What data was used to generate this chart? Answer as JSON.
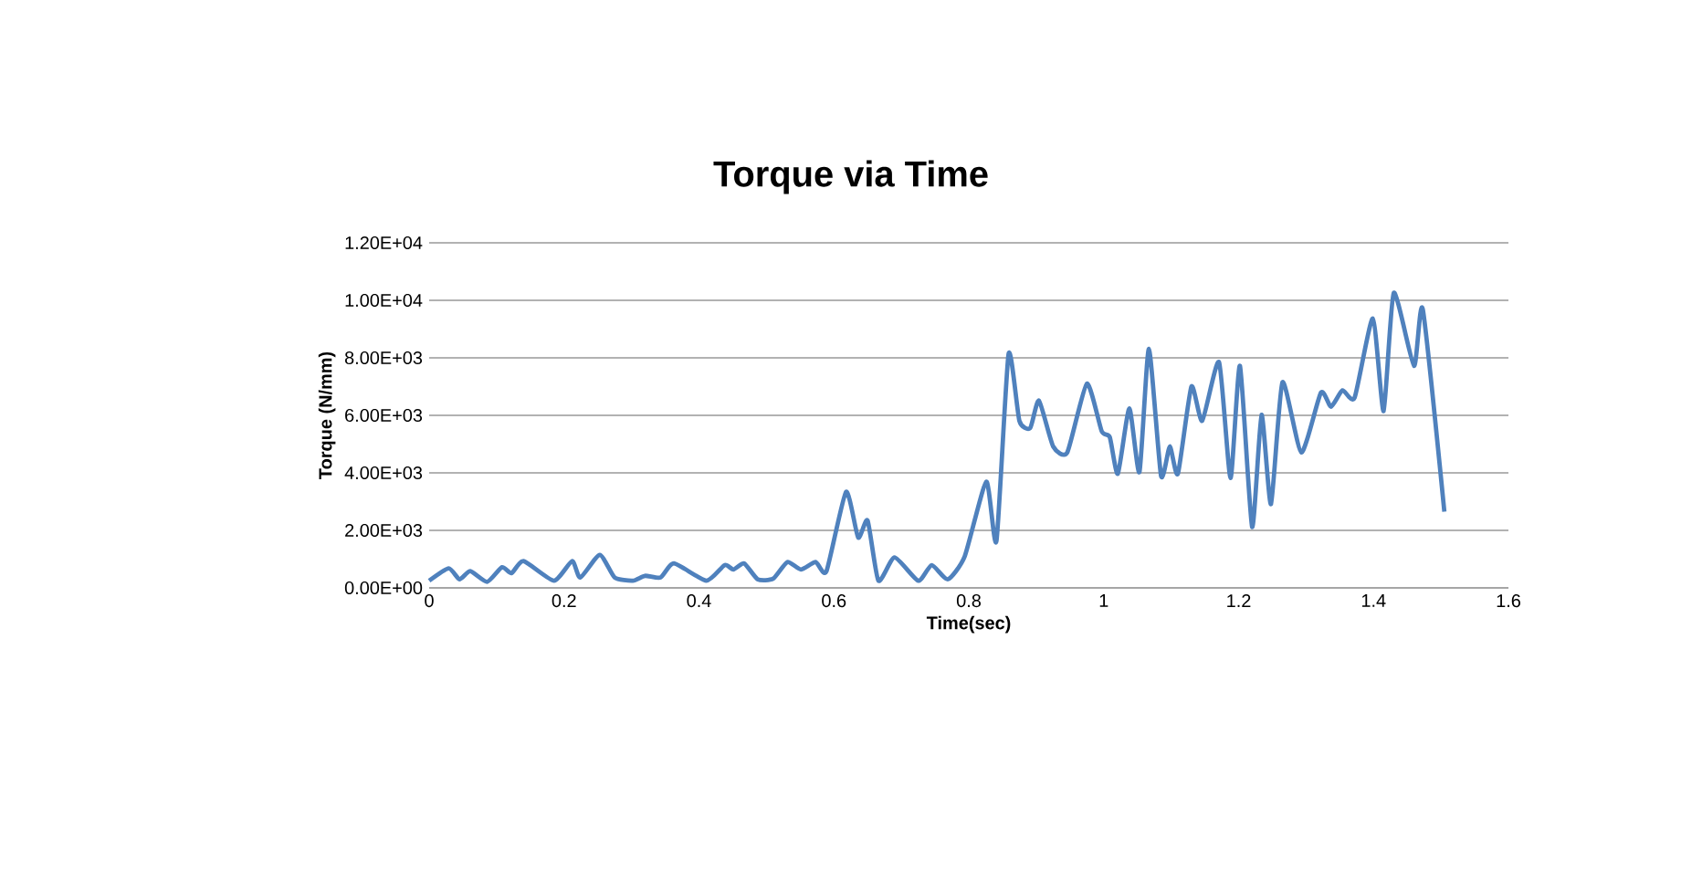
{
  "chart_data": {
    "type": "line",
    "title": "Torque via Time",
    "xlabel": "Time(sec)",
    "ylabel": "Torque (N/mm)",
    "xlim": [
      0,
      1.6
    ],
    "xticks": [
      0,
      0.2,
      0.4,
      0.6,
      0.8,
      1,
      1.2,
      1.4,
      1.6
    ],
    "ylim": [
      0,
      12000
    ],
    "yticks": [
      {
        "value": 0,
        "label": "0.00E+00"
      },
      {
        "value": 2000,
        "label": "2.00E+03"
      },
      {
        "value": 4000,
        "label": "4.00E+03"
      },
      {
        "value": 6000,
        "label": "6.00E+03"
      },
      {
        "value": 8000,
        "label": "8.00E+03"
      },
      {
        "value": 10000,
        "label": "1.00E+04"
      },
      {
        "value": 12000,
        "label": "1.20E+04"
      }
    ],
    "grid": "y",
    "legend": false,
    "marker": "none",
    "line_style": "solid",
    "series": [
      {
        "color": "#4f81bd",
        "x": [
          0,
          0.029,
          0.045,
          0.061,
          0.086,
          0.108,
          0.122,
          0.14,
          0.185,
          0.212,
          0.224,
          0.253,
          0.275,
          0.302,
          0.32,
          0.343,
          0.363,
          0.411,
          0.438,
          0.451,
          0.467,
          0.487,
          0.51,
          0.531,
          0.551,
          0.573,
          0.589,
          0.618,
          0.636,
          0.65,
          0.666,
          0.69,
          0.725,
          0.745,
          0.769,
          0.794,
          0.826,
          0.841,
          0.859,
          0.875,
          0.891,
          0.904,
          0.925,
          0.946,
          0.975,
          0.997,
          1.009,
          1.021,
          1.038,
          1.053,
          1.067,
          1.085,
          1.098,
          1.11,
          1.13,
          1.146,
          1.171,
          1.188,
          1.202,
          1.22,
          1.234,
          1.248,
          1.265,
          1.293,
          1.322,
          1.337,
          1.354,
          1.372,
          1.399,
          1.415,
          1.43,
          1.46,
          1.473,
          1.505
        ],
        "values": [
          250,
          680,
          300,
          580,
          210,
          720,
          510,
          930,
          250,
          930,
          360,
          1150,
          360,
          250,
          420,
          360,
          850,
          250,
          790,
          640,
          850,
          300,
          320,
          900,
          640,
          900,
          580,
          3340,
          1750,
          2340,
          250,
          1060,
          250,
          790,
          300,
          1100,
          3690,
          1630,
          8140,
          5810,
          5560,
          6510,
          4920,
          4710,
          7100,
          5450,
          5240,
          3970,
          6240,
          4030,
          8310,
          3900,
          4920,
          3970,
          7000,
          5810,
          7850,
          3820,
          7720,
          2120,
          6020,
          2910,
          7150,
          4710,
          6790,
          6300,
          6870,
          6620,
          9370,
          6150,
          10260,
          7720,
          9690,
          2650
        ]
      }
    ]
  }
}
